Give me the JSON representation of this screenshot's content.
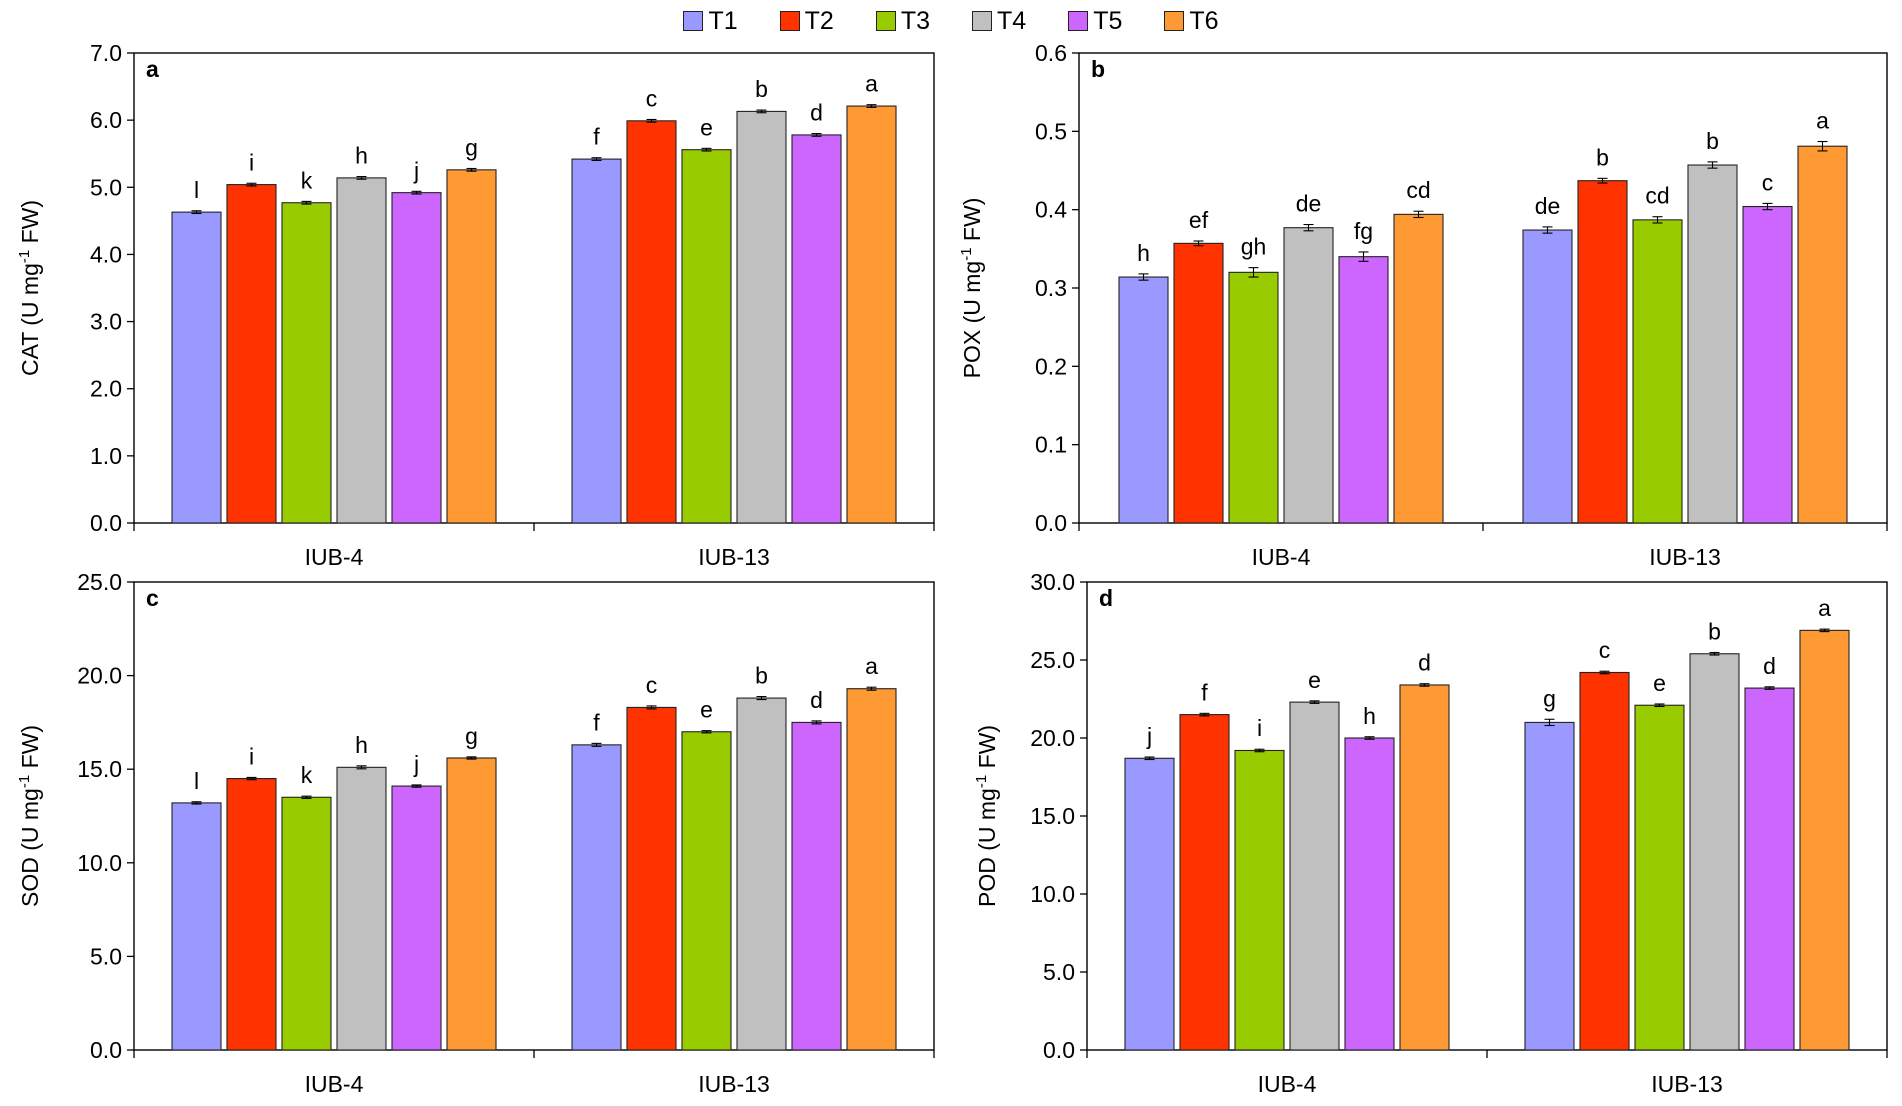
{
  "legend": [
    {
      "label": "T1",
      "color": "#9999ff"
    },
    {
      "label": "T2",
      "color": "#ff3300"
    },
    {
      "label": "T3",
      "color": "#99cc00"
    },
    {
      "label": "T4",
      "color": "#c0c0c0"
    },
    {
      "label": "T5",
      "color": "#cc66ff"
    },
    {
      "label": "T6",
      "color": "#ff9933"
    }
  ],
  "chart_data": [
    {
      "type": "bar",
      "panel_label": "a",
      "ylabel_main": "CAT (U mg",
      "ylabel_sup": "-1",
      "ylabel_tail": " FW)",
      "ylim": [
        0,
        7
      ],
      "yticks": [
        "0.0",
        "1.0",
        "2.0",
        "3.0",
        "4.0",
        "5.0",
        "6.0",
        "7.0"
      ],
      "categories": [
        "IUB-4",
        "IUB-13"
      ],
      "series": [
        {
          "name": "T1",
          "values": [
            4.63,
            5.42
          ],
          "errors": [
            0.02,
            0.02
          ],
          "letters": [
            "l",
            "f"
          ]
        },
        {
          "name": "T2",
          "values": [
            5.04,
            5.99
          ],
          "errors": [
            0.02,
            0.02
          ],
          "letters": [
            "i",
            "c"
          ]
        },
        {
          "name": "T3",
          "values": [
            4.77,
            5.56
          ],
          "errors": [
            0.02,
            0.02
          ],
          "letters": [
            "k",
            "e"
          ]
        },
        {
          "name": "T4",
          "values": [
            5.14,
            6.13
          ],
          "errors": [
            0.02,
            0.02
          ],
          "letters": [
            "h",
            "b"
          ]
        },
        {
          "name": "T5",
          "values": [
            4.92,
            5.78
          ],
          "errors": [
            0.02,
            0.02
          ],
          "letters": [
            "j",
            "d"
          ]
        },
        {
          "name": "T6",
          "values": [
            5.26,
            6.21
          ],
          "errors": [
            0.02,
            0.02
          ],
          "letters": [
            "g",
            "a"
          ]
        }
      ]
    },
    {
      "type": "bar",
      "panel_label": "b",
      "ylabel_main": "POX (U mg",
      "ylabel_sup": "-1",
      "ylabel_tail": " FW)",
      "ylim": [
        0,
        0.6
      ],
      "yticks": [
        "0.0",
        "0.1",
        "0.2",
        "0.3",
        "0.4",
        "0.5",
        "0.6"
      ],
      "categories": [
        "IUB-4",
        "IUB-13"
      ],
      "series": [
        {
          "name": "T1",
          "values": [
            0.314,
            0.374
          ],
          "errors": [
            0.004,
            0.004
          ],
          "letters": [
            "h",
            "de"
          ]
        },
        {
          "name": "T2",
          "values": [
            0.357,
            0.437
          ],
          "errors": [
            0.003,
            0.003
          ],
          "letters": [
            "ef",
            "b"
          ]
        },
        {
          "name": "T3",
          "values": [
            0.32,
            0.387
          ],
          "errors": [
            0.006,
            0.004
          ],
          "letters": [
            "gh",
            "cd"
          ]
        },
        {
          "name": "T4",
          "values": [
            0.377,
            0.457
          ],
          "errors": [
            0.004,
            0.004
          ],
          "letters": [
            "de",
            "b"
          ]
        },
        {
          "name": "T5",
          "values": [
            0.34,
            0.404
          ],
          "errors": [
            0.006,
            0.004
          ],
          "letters": [
            "fg",
            "c"
          ]
        },
        {
          "name": "T6",
          "values": [
            0.394,
            0.481
          ],
          "errors": [
            0.004,
            0.006
          ],
          "letters": [
            "cd",
            "a"
          ]
        }
      ]
    },
    {
      "type": "bar",
      "panel_label": "c",
      "ylabel_main": "SOD (U mg",
      "ylabel_sup": "-1",
      "ylabel_tail": " FW)",
      "ylim": [
        0,
        25
      ],
      "yticks": [
        "0.0",
        "5.0",
        "10.0",
        "15.0",
        "20.0",
        "25.0"
      ],
      "categories": [
        "IUB-4",
        "IUB-13"
      ],
      "series": [
        {
          "name": "T1",
          "values": [
            13.2,
            16.3
          ],
          "errors": [
            0.06,
            0.08
          ],
          "letters": [
            "l",
            "f"
          ]
        },
        {
          "name": "T2",
          "values": [
            14.5,
            18.3
          ],
          "errors": [
            0.06,
            0.08
          ],
          "letters": [
            "i",
            "c"
          ]
        },
        {
          "name": "T3",
          "values": [
            13.5,
            17.0
          ],
          "errors": [
            0.06,
            0.06
          ],
          "letters": [
            "k",
            "e"
          ]
        },
        {
          "name": "T4",
          "values": [
            15.1,
            18.8
          ],
          "errors": [
            0.08,
            0.08
          ],
          "letters": [
            "h",
            "b"
          ]
        },
        {
          "name": "T5",
          "values": [
            14.1,
            17.5
          ],
          "errors": [
            0.06,
            0.08
          ],
          "letters": [
            "j",
            "d"
          ]
        },
        {
          "name": "T6",
          "values": [
            15.6,
            19.3
          ],
          "errors": [
            0.06,
            0.08
          ],
          "letters": [
            "g",
            "a"
          ]
        }
      ]
    },
    {
      "type": "bar",
      "panel_label": "d",
      "ylabel_main": "POD (U mg",
      "ylabel_sup": "-1",
      "ylabel_tail": " FW)",
      "ylim": [
        0,
        30
      ],
      "yticks": [
        "0.0",
        "5.0",
        "10.0",
        "15.0",
        "20.0",
        "25.0",
        "30.0"
      ],
      "categories": [
        "IUB-4",
        "IUB-13"
      ],
      "series": [
        {
          "name": "T1",
          "values": [
            18.7,
            21.0
          ],
          "errors": [
            0.08,
            0.2
          ],
          "letters": [
            "j",
            "g"
          ]
        },
        {
          "name": "T2",
          "values": [
            21.5,
            24.2
          ],
          "errors": [
            0.08,
            0.08
          ],
          "letters": [
            "f",
            "c"
          ]
        },
        {
          "name": "T3",
          "values": [
            19.2,
            22.1
          ],
          "errors": [
            0.08,
            0.08
          ],
          "letters": [
            "i",
            "e"
          ]
        },
        {
          "name": "T4",
          "values": [
            22.3,
            25.4
          ],
          "errors": [
            0.08,
            0.08
          ],
          "letters": [
            "e",
            "b"
          ]
        },
        {
          "name": "T5",
          "values": [
            20.0,
            23.2
          ],
          "errors": [
            0.08,
            0.08
          ],
          "letters": [
            "h",
            "d"
          ]
        },
        {
          "name": "T6",
          "values": [
            23.4,
            26.9
          ],
          "errors": [
            0.08,
            0.08
          ],
          "letters": [
            "d",
            "a"
          ]
        }
      ]
    }
  ]
}
